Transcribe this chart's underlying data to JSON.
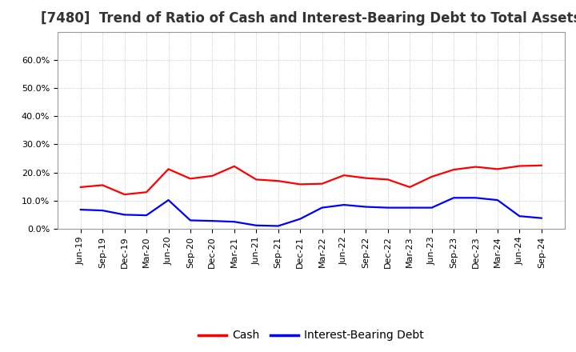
{
  "title": "[7480]  Trend of Ratio of Cash and Interest-Bearing Debt to Total Assets",
  "x_labels": [
    "Jun-19",
    "Sep-19",
    "Dec-19",
    "Mar-20",
    "Jun-20",
    "Sep-20",
    "Dec-20",
    "Mar-21",
    "Jun-21",
    "Sep-21",
    "Dec-21",
    "Mar-22",
    "Jun-22",
    "Sep-22",
    "Dec-22",
    "Mar-23",
    "Jun-23",
    "Sep-23",
    "Dec-23",
    "Mar-24",
    "Jun-24",
    "Sep-24"
  ],
  "cash": [
    14.8,
    15.5,
    12.2,
    13.0,
    21.2,
    17.8,
    18.8,
    22.2,
    17.5,
    17.0,
    15.8,
    16.0,
    19.0,
    18.0,
    17.5,
    14.8,
    18.5,
    21.0,
    22.0,
    21.2,
    22.3,
    22.5
  ],
  "debt": [
    6.8,
    6.5,
    5.0,
    4.8,
    10.2,
    3.0,
    2.8,
    2.5,
    1.2,
    1.0,
    3.5,
    7.5,
    8.5,
    7.8,
    7.5,
    7.5,
    7.5,
    11.0,
    11.0,
    10.2,
    4.5,
    3.8
  ],
  "cash_color": "#ff0000",
  "debt_color": "#0000ff",
  "ylim": [
    0,
    70
  ],
  "yticks": [
    0,
    10,
    20,
    30,
    40,
    50,
    60
  ],
  "ytick_labels": [
    "0.0%",
    "10.0%",
    "20.0%",
    "30.0%",
    "40.0%",
    "50.0%",
    "60.0%"
  ],
  "background_color": "#ffffff",
  "plot_bg_color": "#ffffff",
  "grid_color": "#aaaaaa",
  "legend_cash": "Cash",
  "legend_debt": "Interest-Bearing Debt",
  "title_fontsize": 12,
  "axis_fontsize": 8,
  "legend_fontsize": 10,
  "line_width": 1.6
}
